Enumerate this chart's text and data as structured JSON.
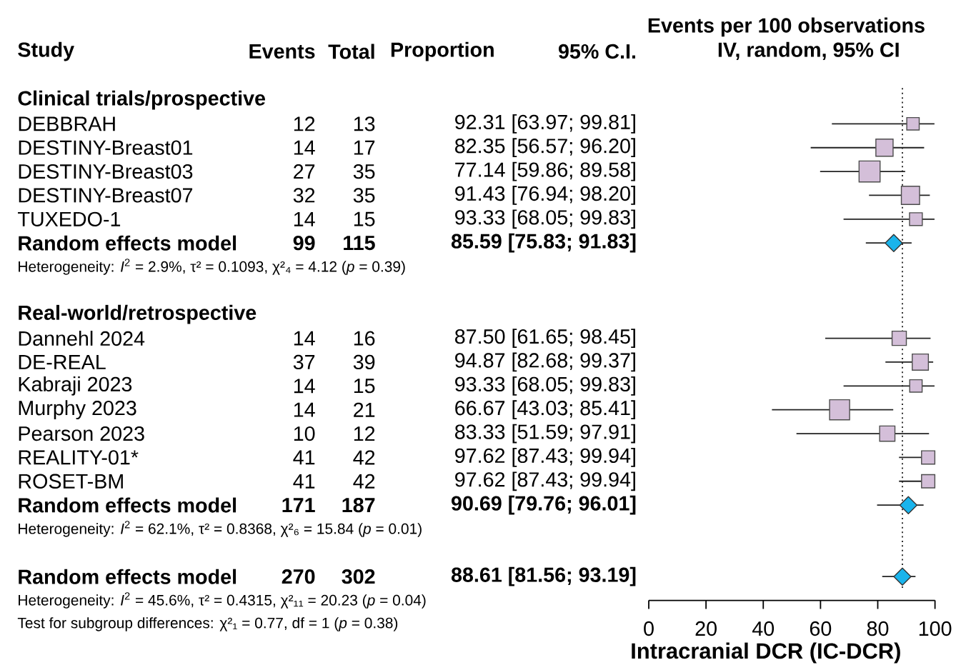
{
  "chart_data": [
    {
      "type": "other",
      "categories": [
        "Clinical trials/prospective",
        "DEBBRAH",
        "DESTINY-Breast01",
        "DESTINY-Breast03",
        "DESTINY-Breast07",
        "TUXEDO-1",
        "Random effects model",
        null,
        null,
        "Real-world/retrospective",
        "Dannehl 2024",
        "DE-REAL",
        "Kabraji 2023",
        "Murphy 2023",
        "Pearson 2023",
        "REALITY-01*",
        "ROSET-BM",
        "Random effects model",
        null,
        null,
        "Random effects model"
      ],
      "series": [
        {
          "name": "Events",
          "values": [
            null,
            12,
            14,
            27,
            32,
            14,
            99,
            null,
            null,
            null,
            14,
            37,
            14,
            14,
            10,
            41,
            41,
            171,
            null,
            null,
            270
          ]
        },
        {
          "name": "Total",
          "values": [
            null,
            13,
            17,
            35,
            35,
            15,
            115,
            null,
            null,
            null,
            16,
            39,
            15,
            21,
            12,
            42,
            42,
            187,
            null,
            null,
            302
          ]
        },
        {
          "name": "Proportion",
          "values": [
            null,
            92.31,
            82.35,
            77.14,
            91.43,
            93.33,
            85.59,
            null,
            null,
            null,
            87.5,
            94.87,
            93.33,
            66.67,
            83.33,
            97.62,
            97.62,
            90.69,
            null,
            null,
            88.61
          ],
          "value_labels": [
            null,
            "92.31 [63.97; 99.81]",
            "82.35 [56.57; 96.20]",
            "77.14 [59.86; 89.58]",
            "91.43 [76.94; 98.20]",
            "93.33 [68.05; 99.83]",
            "85.59 [75.83; 91.83]",
            null,
            null,
            null,
            "87.50 [61.65; 98.45]",
            "94.87 [82.68; 99.37]",
            "93.33 [68.05; 99.83]",
            "66.67 [43.03; 85.41]",
            "83.33 [51.59; 97.91]",
            "97.62 [87.43; 99.94]",
            "97.62 [87.43; 99.94]",
            "90.69 [79.76; 96.01]",
            null,
            null,
            "88.61 [81.56; 93.19]"
          ]
        }
      ],
      "data_labels": true,
      "annotations": [
        "Study",
        "Heterogeneity: *I*$^{2}$ = 2.9%, τ² = 0.1093, χ²₄ = 4.12 (*p* = 0.39)",
        "Heterogeneity: *I*$^{2}$ = 62.1%, τ² = 0.8368, χ²₆ = 15.84 (*p* = 0.01)",
        "Heterogeneity: *I*$^{2}$ = 45.6%, τ² = 0.4315, χ²₁₁ = 20.23 (*p* = 0.04)",
        "Test for subgroup differences: χ²₁ = 0.77, df = 1 (*p* = 0.38)"
      ]
    },
    {
      "type": "scatter",
      "orientation": "horizontal",
      "title": "Events per 100 observations",
      "subtitle": "IV, random, 95% CI",
      "xlabel": "Intracranial DCR (IC-DCR)",
      "categories": [
        null,
        null,
        null,
        null,
        null,
        null,
        null,
        null,
        null,
        null,
        null,
        null,
        null,
        null,
        null,
        null,
        null,
        null,
        null,
        null,
        null
      ],
      "tick_labels": "x",
      "series": [
        {
          "type": "bubble",
          "marker": "square",
          "color": "#d4bfd9",
          "values": [
            null,
            92.31,
            82.35,
            77.14,
            91.43,
            93.33,
            null,
            null,
            null,
            null,
            87.5,
            94.87,
            93.33,
            66.67,
            83.33,
            97.62,
            97.62,
            null,
            null,
            null,
            null
          ],
          "errors": [
            null,
            [
              63.97,
              99.81
            ],
            [
              56.57,
              96.2
            ],
            [
              59.86,
              89.58
            ],
            [
              76.94,
              98.2
            ],
            [
              68.05,
              99.83
            ],
            null,
            null,
            null,
            null,
            [
              61.65,
              98.45
            ],
            [
              82.68,
              99.37
            ],
            [
              68.05,
              99.83
            ],
            [
              43.03,
              85.41
            ],
            [
              51.59,
              97.91
            ],
            [
              87.43,
              99.94
            ],
            [
              87.43,
              99.94
            ],
            null,
            null,
            null,
            null
          ],
          "sizes": [
            null,
            0.35,
            0.67,
            1,
            0.75,
            0.37,
            null,
            null,
            null,
            null,
            0.46,
            0.59,
            0.35,
            0.91,
            0.53,
            0.4,
            0.4,
            null,
            null,
            null,
            null
          ]
        },
        {
          "marker": "diamond",
          "color": "#1ab4ec",
          "values": [
            null,
            null,
            null,
            null,
            null,
            null,
            85.59,
            null,
            null,
            null,
            null,
            null,
            null,
            null,
            null,
            null,
            null,
            90.69,
            null,
            null,
            88.61
          ],
          "errors": [
            null,
            null,
            null,
            null,
            null,
            null,
            [
              75.83,
              91.83
            ],
            null,
            null,
            null,
            null,
            null,
            null,
            null,
            null,
            null,
            null,
            [
              79.76,
              96.01
            ],
            null,
            null,
            [
              81.56,
              93.19
            ]
          ]
        }
      ],
      "xlim": [
        0,
        100
      ],
      "xticks": [
        0,
        20,
        40,
        60,
        80,
        100
      ],
      "ref_lines": [
        {
          "axis": "x",
          "value": 88.61,
          "line_style": "dotted",
          "color": "#000000"
        }
      ],
      "annotations": [
        "95% C.I."
      ]
    }
  ]
}
